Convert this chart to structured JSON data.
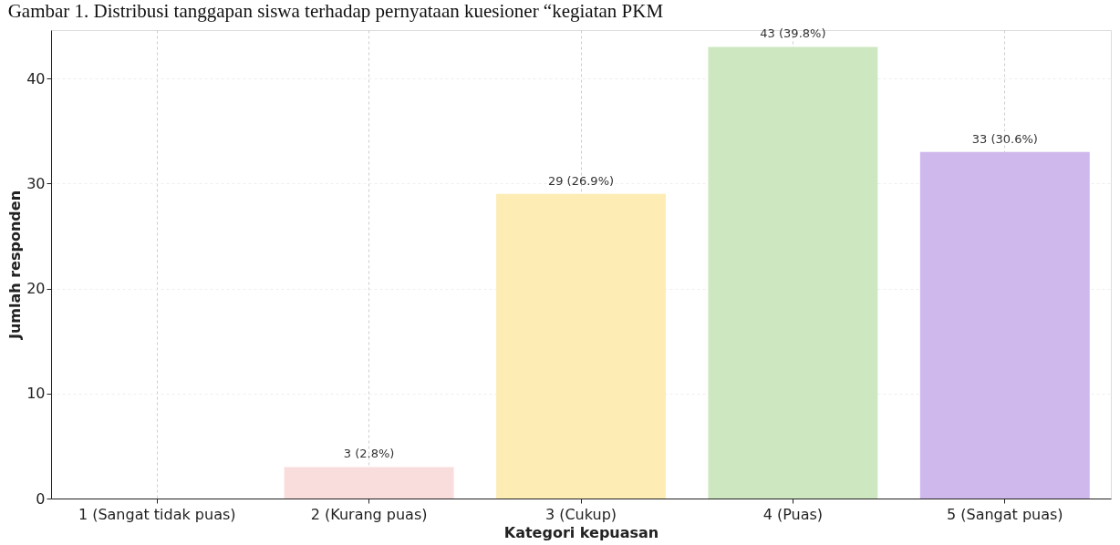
{
  "chart_data": {
    "type": "bar",
    "title": "Gambar 1. Distribusi tanggapan siswa terhadap pernyataan kuesioner “kegiatan PKM",
    "xlabel": "Kategori kepuasan",
    "ylabel": "Jumlah responden",
    "categories": [
      "1 (Sangat tidak puas)",
      "2 (Kurang puas)",
      "3 (Cukup)",
      "4 (Puas)",
      "5 (Sangat puas)"
    ],
    "values": [
      0,
      3,
      29,
      43,
      33
    ],
    "colors": [
      "#f9dcdc",
      "#f9dcdc",
      "#fdedb4",
      "#cde8c1",
      "#cfb8ec"
    ],
    "value_labels": [
      null,
      "3 (2.8%)",
      "29 (26.9%)",
      "43 (39.8%)",
      "33 (30.6%)"
    ],
    "ylim": [
      0,
      44.6
    ],
    "yticks": [
      0,
      10,
      20,
      30,
      40
    ],
    "grid": true,
    "legend": false
  }
}
